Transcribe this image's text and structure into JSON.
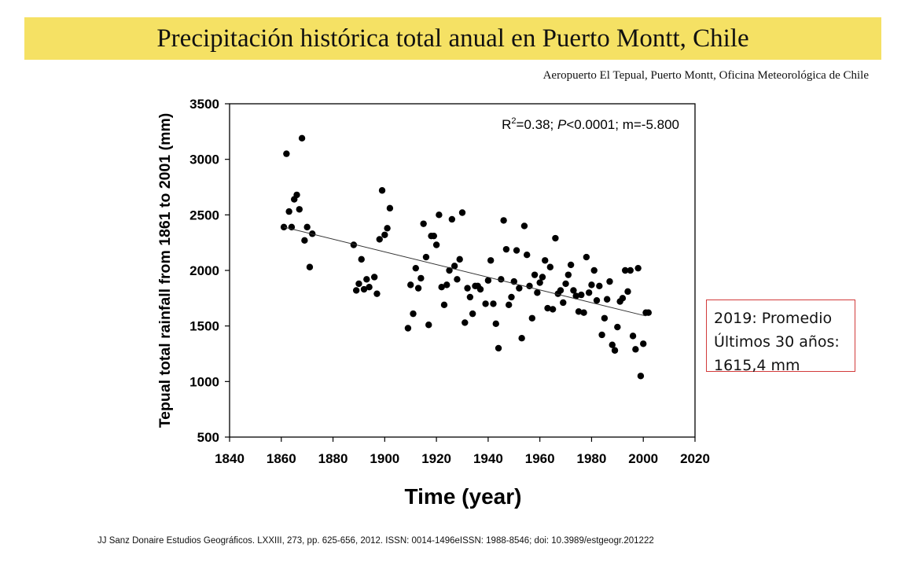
{
  "title": "Precipitación histórica total anual en Puerto Montt, Chile",
  "source_note": "Aeropuerto El Tepual, Puerto Montt, Oficina Meteorológica de Chile",
  "note_box": {
    "line1": "2019: Promedio",
    "line2": "Últimos 30 años:",
    "line3": "1615,4 mm"
  },
  "citation": "JJ Sanz Donaire Estudios Geográficos. LXXIII, 273, pp. 625-656, 2012. ISSN: 0014-1496eISSN: 1988-8546; doi: 10.3989/estgeogr.201222",
  "colors": {
    "title_band": "#f5e164",
    "note_border": "#d23b3b",
    "points": "#000000"
  },
  "chart_data": {
    "type": "scatter",
    "title": "",
    "xlabel": "Time (year)",
    "ylabel": "Tepual total rainfall from 1861 to 2001 (mm)",
    "xlim": [
      1840,
      2020
    ],
    "ylim": [
      500,
      3500
    ],
    "x_ticks": [
      1840,
      1860,
      1880,
      1900,
      1920,
      1940,
      1960,
      1980,
      2000,
      2020
    ],
    "y_ticks": [
      500,
      1000,
      1500,
      2000,
      2500,
      3000,
      3500
    ],
    "annotation": "R²=0.38; P<0.0001; m=-5.800",
    "grid": false,
    "trendline": {
      "x": [
        1861,
        2001
      ],
      "y": [
        2390,
        1590
      ]
    },
    "points": [
      [
        1861,
        2390
      ],
      [
        1862,
        3050
      ],
      [
        1863,
        2530
      ],
      [
        1864,
        2390
      ],
      [
        1865,
        2640
      ],
      [
        1866,
        2680
      ],
      [
        1867,
        2550
      ],
      [
        1868,
        3190
      ],
      [
        1869,
        2270
      ],
      [
        1870,
        2390
      ],
      [
        1871,
        2030
      ],
      [
        1872,
        2330
      ],
      [
        1888,
        2230
      ],
      [
        1889,
        1820
      ],
      [
        1890,
        1880
      ],
      [
        1891,
        2100
      ],
      [
        1892,
        1830
      ],
      [
        1893,
        1920
      ],
      [
        1894,
        1850
      ],
      [
        1896,
        1940
      ],
      [
        1897,
        1790
      ],
      [
        1898,
        2280
      ],
      [
        1899,
        2720
      ],
      [
        1900,
        2320
      ],
      [
        1901,
        2380
      ],
      [
        1902,
        2560
      ],
      [
        1909,
        1480
      ],
      [
        1910,
        1870
      ],
      [
        1911,
        1610
      ],
      [
        1912,
        2020
      ],
      [
        1913,
        1840
      ],
      [
        1914,
        1930
      ],
      [
        1915,
        2420
      ],
      [
        1916,
        2120
      ],
      [
        1917,
        1510
      ],
      [
        1918,
        2310
      ],
      [
        1919,
        2310
      ],
      [
        1920,
        2230
      ],
      [
        1921,
        2500
      ],
      [
        1922,
        1850
      ],
      [
        1923,
        1690
      ],
      [
        1924,
        1870
      ],
      [
        1925,
        2000
      ],
      [
        1926,
        2460
      ],
      [
        1927,
        2040
      ],
      [
        1928,
        1920
      ],
      [
        1929,
        2100
      ],
      [
        1930,
        2520
      ],
      [
        1931,
        1530
      ],
      [
        1932,
        1840
      ],
      [
        1933,
        1760
      ],
      [
        1934,
        1610
      ],
      [
        1935,
        1860
      ],
      [
        1936,
        1860
      ],
      [
        1937,
        1830
      ],
      [
        1939,
        1700
      ],
      [
        1940,
        1910
      ],
      [
        1941,
        2090
      ],
      [
        1942,
        1700
      ],
      [
        1943,
        1520
      ],
      [
        1944,
        1300
      ],
      [
        1945,
        1920
      ],
      [
        1946,
        2450
      ],
      [
        1947,
        2190
      ],
      [
        1948,
        1690
      ],
      [
        1949,
        1760
      ],
      [
        1950,
        1900
      ],
      [
        1951,
        2180
      ],
      [
        1952,
        1840
      ],
      [
        1953,
        1390
      ],
      [
        1954,
        2400
      ],
      [
        1955,
        2140
      ],
      [
        1956,
        1860
      ],
      [
        1957,
        1570
      ],
      [
        1958,
        1960
      ],
      [
        1959,
        1800
      ],
      [
        1960,
        1890
      ],
      [
        1961,
        1940
      ],
      [
        1962,
        2090
      ],
      [
        1963,
        1660
      ],
      [
        1964,
        2030
      ],
      [
        1965,
        1650
      ],
      [
        1966,
        2290
      ],
      [
        1967,
        1790
      ],
      [
        1968,
        1820
      ],
      [
        1969,
        1710
      ],
      [
        1970,
        1880
      ],
      [
        1971,
        1960
      ],
      [
        1972,
        2050
      ],
      [
        1973,
        1820
      ],
      [
        1974,
        1770
      ],
      [
        1975,
        1630
      ],
      [
        1976,
        1780
      ],
      [
        1977,
        1620
      ],
      [
        1978,
        2120
      ],
      [
        1979,
        1800
      ],
      [
        1980,
        1870
      ],
      [
        1981,
        2000
      ],
      [
        1982,
        1730
      ],
      [
        1983,
        1860
      ],
      [
        1984,
        1420
      ],
      [
        1985,
        1570
      ],
      [
        1986,
        1740
      ],
      [
        1987,
        1900
      ],
      [
        1988,
        1330
      ],
      [
        1989,
        1280
      ],
      [
        1990,
        1490
      ],
      [
        1991,
        1720
      ],
      [
        1992,
        1750
      ],
      [
        1993,
        2000
      ],
      [
        1994,
        1810
      ],
      [
        1995,
        2000
      ],
      [
        1996,
        1410
      ],
      [
        1997,
        1290
      ],
      [
        1998,
        2020
      ],
      [
        1999,
        1050
      ],
      [
        2000,
        1340
      ],
      [
        2001,
        1620
      ],
      [
        2002,
        1620
      ]
    ]
  }
}
